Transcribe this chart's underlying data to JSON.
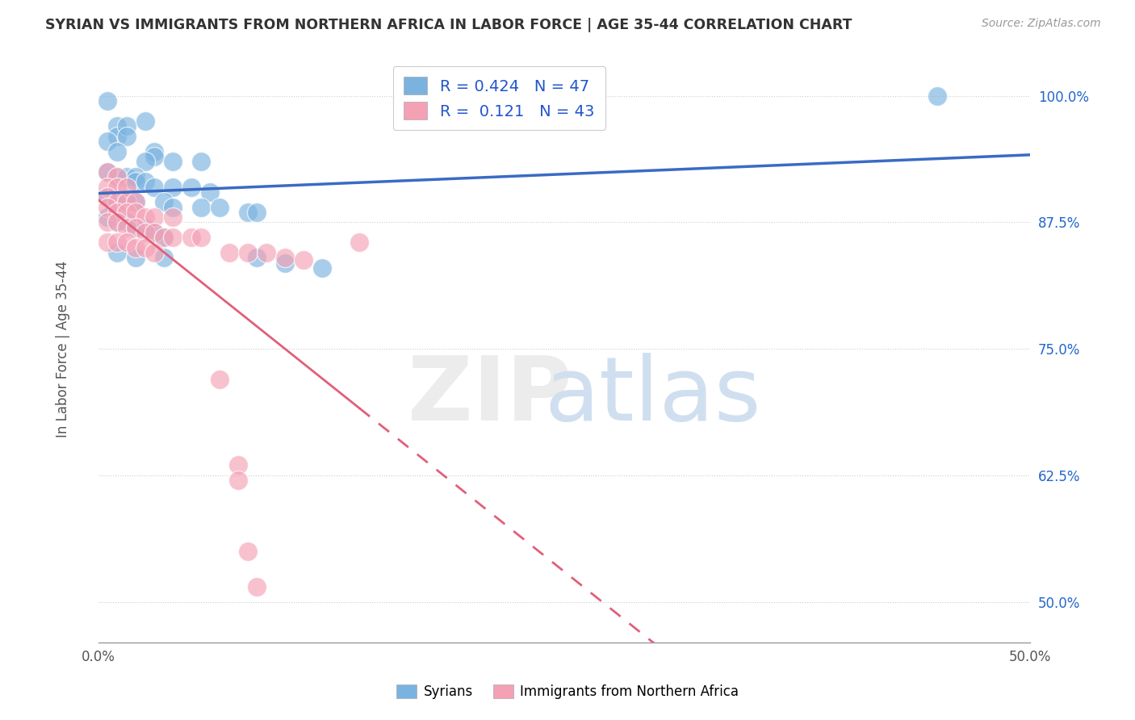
{
  "title": "SYRIAN VS IMMIGRANTS FROM NORTHERN AFRICA IN LABOR FORCE | AGE 35-44 CORRELATION CHART",
  "source": "Source: ZipAtlas.com",
  "ylabel_label": "In Labor Force | Age 35-44",
  "ytick_values": [
    0.5,
    0.625,
    0.75,
    0.875,
    1.0
  ],
  "xlim": [
    0.0,
    0.5
  ],
  "ylim": [
    0.46,
    1.04
  ],
  "r_syrian": 0.424,
  "n_syrian": 47,
  "r_nafrica": 0.121,
  "n_nafrica": 43,
  "legend_entries": [
    "Syrians",
    "Immigrants from Northern Africa"
  ],
  "blue_color": "#7ab3e0",
  "pink_color": "#f4a0b5",
  "trend_blue": "#3a6bc4",
  "trend_pink": "#e0607a",
  "syrian_points": [
    [
      0.005,
      0.995
    ],
    [
      0.01,
      0.97
    ],
    [
      0.01,
      0.96
    ],
    [
      0.015,
      0.97
    ],
    [
      0.015,
      0.96
    ],
    [
      0.025,
      0.975
    ],
    [
      0.005,
      0.955
    ],
    [
      0.01,
      0.945
    ],
    [
      0.03,
      0.945
    ],
    [
      0.03,
      0.94
    ],
    [
      0.025,
      0.935
    ],
    [
      0.04,
      0.935
    ],
    [
      0.055,
      0.935
    ],
    [
      0.005,
      0.925
    ],
    [
      0.01,
      0.92
    ],
    [
      0.015,
      0.92
    ],
    [
      0.02,
      0.92
    ],
    [
      0.02,
      0.915
    ],
    [
      0.025,
      0.915
    ],
    [
      0.03,
      0.91
    ],
    [
      0.04,
      0.91
    ],
    [
      0.05,
      0.91
    ],
    [
      0.06,
      0.905
    ],
    [
      0.005,
      0.9
    ],
    [
      0.01,
      0.895
    ],
    [
      0.015,
      0.895
    ],
    [
      0.02,
      0.895
    ],
    [
      0.035,
      0.895
    ],
    [
      0.04,
      0.89
    ],
    [
      0.055,
      0.89
    ],
    [
      0.065,
      0.89
    ],
    [
      0.08,
      0.885
    ],
    [
      0.085,
      0.885
    ],
    [
      0.005,
      0.88
    ],
    [
      0.01,
      0.875
    ],
    [
      0.015,
      0.875
    ],
    [
      0.02,
      0.87
    ],
    [
      0.025,
      0.87
    ],
    [
      0.03,
      0.865
    ],
    [
      0.035,
      0.86
    ],
    [
      0.01,
      0.845
    ],
    [
      0.02,
      0.84
    ],
    [
      0.035,
      0.84
    ],
    [
      0.085,
      0.84
    ],
    [
      0.1,
      0.835
    ],
    [
      0.12,
      0.83
    ],
    [
      0.45,
      1.0
    ]
  ],
  "nafrica_points": [
    [
      0.005,
      0.925
    ],
    [
      0.01,
      0.92
    ],
    [
      0.005,
      0.91
    ],
    [
      0.01,
      0.91
    ],
    [
      0.015,
      0.91
    ],
    [
      0.005,
      0.9
    ],
    [
      0.01,
      0.895
    ],
    [
      0.015,
      0.895
    ],
    [
      0.02,
      0.895
    ],
    [
      0.005,
      0.89
    ],
    [
      0.01,
      0.885
    ],
    [
      0.015,
      0.885
    ],
    [
      0.02,
      0.885
    ],
    [
      0.025,
      0.88
    ],
    [
      0.03,
      0.88
    ],
    [
      0.04,
      0.88
    ],
    [
      0.005,
      0.875
    ],
    [
      0.01,
      0.875
    ],
    [
      0.015,
      0.87
    ],
    [
      0.02,
      0.87
    ],
    [
      0.025,
      0.865
    ],
    [
      0.03,
      0.865
    ],
    [
      0.035,
      0.86
    ],
    [
      0.04,
      0.86
    ],
    [
      0.05,
      0.86
    ],
    [
      0.055,
      0.86
    ],
    [
      0.005,
      0.855
    ],
    [
      0.01,
      0.855
    ],
    [
      0.015,
      0.855
    ],
    [
      0.02,
      0.85
    ],
    [
      0.025,
      0.85
    ],
    [
      0.03,
      0.845
    ],
    [
      0.07,
      0.845
    ],
    [
      0.08,
      0.845
    ],
    [
      0.09,
      0.845
    ],
    [
      0.1,
      0.84
    ],
    [
      0.11,
      0.838
    ],
    [
      0.14,
      0.855
    ],
    [
      0.065,
      0.72
    ],
    [
      0.075,
      0.635
    ],
    [
      0.075,
      0.62
    ],
    [
      0.08,
      0.55
    ],
    [
      0.085,
      0.515
    ]
  ]
}
